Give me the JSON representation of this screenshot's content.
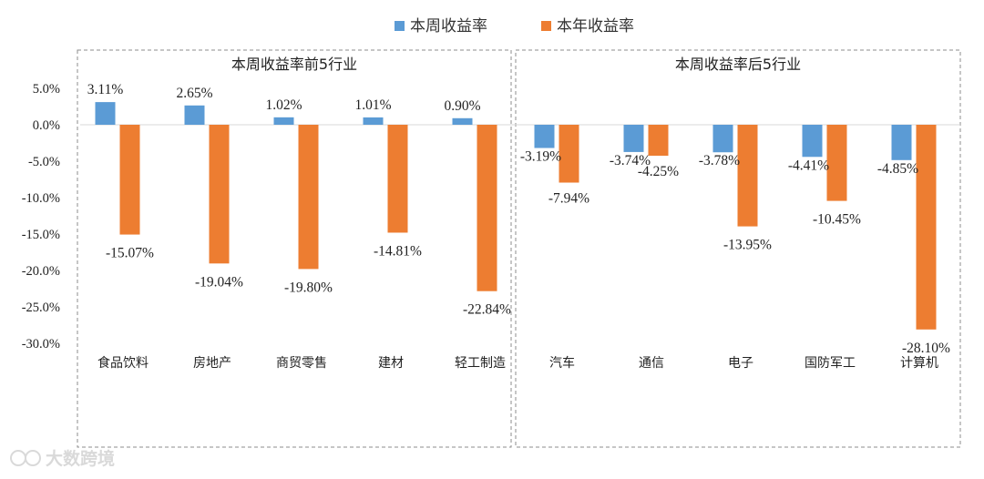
{
  "legend": [
    {
      "name": "本周收益率",
      "color": "#5b9bd5"
    },
    {
      "name": "本年收益率",
      "color": "#ed7d31"
    }
  ],
  "watermark": {
    "text": "大数跨境"
  },
  "chart_data": {
    "type": "bar",
    "ylim": [
      -30,
      5
    ],
    "yticks": [
      {
        "value": 5,
        "label": "5.0%"
      },
      {
        "value": 0,
        "label": "0.0%"
      },
      {
        "value": -5,
        "label": "-5.0%"
      },
      {
        "value": -10,
        "label": "-10.0%"
      },
      {
        "value": -15,
        "label": "-15.0%"
      },
      {
        "value": -20,
        "label": "-20.0%"
      },
      {
        "value": -25,
        "label": "-25.0%"
      },
      {
        "value": -30,
        "label": "-30.0%"
      }
    ],
    "panels": [
      {
        "title": "本周收益率前5行业",
        "categories": [
          "食品饮料",
          "房地产",
          "商贸零售",
          "建材",
          "轻工制造"
        ],
        "series": [
          {
            "name": "本周收益率",
            "values": [
              3.11,
              2.65,
              1.02,
              1.01,
              0.9
            ],
            "labels": [
              "3.11%",
              "2.65%",
              "1.02%",
              "1.01%",
              "0.90%"
            ]
          },
          {
            "name": "本年收益率",
            "values": [
              -15.07,
              -19.04,
              -19.8,
              -14.81,
              -22.84
            ],
            "labels": [
              "-15.07%",
              "-19.04%",
              "-19.80%",
              "-14.81%",
              "-22.84%"
            ]
          }
        ]
      },
      {
        "title": "本周收益率后5行业",
        "categories": [
          "汽车",
          "通信",
          "电子",
          "国防军工",
          "计算机"
        ],
        "series": [
          {
            "name": "本周收益率",
            "values": [
              -3.19,
              -3.74,
              -3.78,
              -4.41,
              -4.85
            ],
            "labels": [
              "-3.19%",
              "-3.74%",
              "-3.78%",
              "-4.41%",
              "-4.85%"
            ]
          },
          {
            "name": "本年收益率",
            "values": [
              -7.94,
              -4.25,
              -13.95,
              -10.45,
              -28.1
            ],
            "labels": [
              "-7.94%",
              "-4.25%",
              "-13.95%",
              "-10.45%",
              "-28.10%"
            ]
          }
        ]
      }
    ]
  }
}
